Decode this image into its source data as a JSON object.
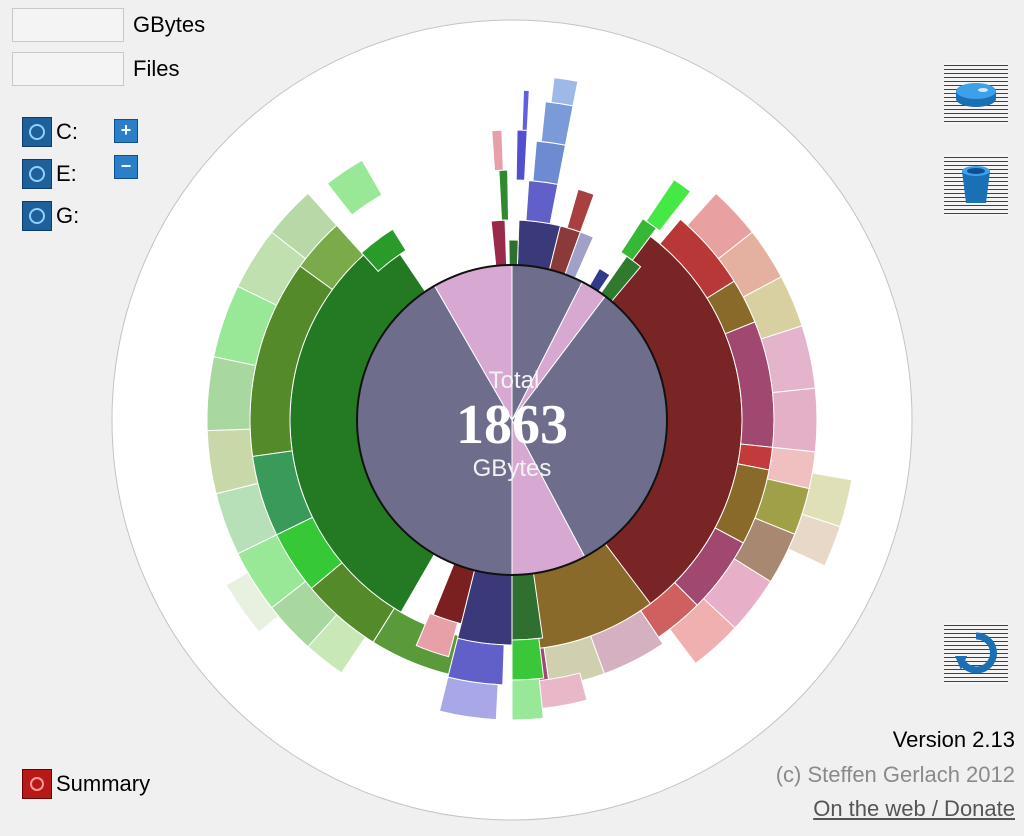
{
  "stats": {
    "gbytes_label": "GBytes",
    "files_label": "Files",
    "gbytes_value": "",
    "files_value": ""
  },
  "drives": [
    {
      "label": "C:",
      "icon": "drive-icon"
    },
    {
      "label": "E:",
      "icon": "drive-icon"
    },
    {
      "label": "G:",
      "icon": "drive-icon"
    }
  ],
  "zoom": {
    "in_icon": "plus-icon",
    "out_icon": "minus-icon",
    "in_glyph": "+",
    "out_glyph": "−"
  },
  "tools": [
    {
      "name": "scan-disk-button",
      "icon": "disk-icon"
    },
    {
      "name": "delete-button",
      "icon": "trash-icon"
    },
    {
      "name": "refresh-button",
      "icon": "refresh-icon"
    }
  ],
  "center": {
    "caption_top": "Total",
    "value": "1863",
    "unit": "GBytes"
  },
  "footer": {
    "version": "Version 2.13",
    "copyright": "(c) Steffen Gerlach 2012",
    "link": "On the web / Donate",
    "summary": "Summary"
  },
  "colors": {
    "drive_c": "#6e6e8c",
    "drive_e": "#2f6f2f",
    "drive_g": "#7a2020",
    "accent_blue": "#1f5f9a",
    "summary_red": "#b81818"
  },
  "chart_data": {
    "type": "sunburst",
    "total_gb": 1863,
    "inner_ring": [
      {
        "color": "#6e6e8c",
        "start_deg": 0,
        "end_deg": 27
      },
      {
        "color": "#d6a8d2",
        "start_deg": 27,
        "end_deg": 37
      },
      {
        "color": "#6e6e8c",
        "start_deg": 37,
        "end_deg": 152
      },
      {
        "color": "#d6a8d2",
        "start_deg": 152,
        "end_deg": 180
      },
      {
        "color": "#6e6e8c",
        "start_deg": 180,
        "end_deg": 330
      },
      {
        "color": "#d6a8d2",
        "start_deg": 330,
        "end_deg": 360
      }
    ]
  }
}
